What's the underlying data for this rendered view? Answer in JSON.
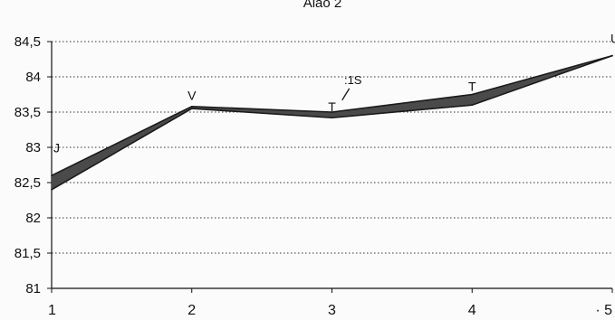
{
  "chart_data": {
    "type": "area",
    "title": "Alao 2",
    "xlabel": "",
    "ylabel": "",
    "x": [
      1,
      2,
      3,
      4,
      5
    ],
    "x_tick_labels": [
      "1",
      "2",
      "3",
      "4",
      "· 5"
    ],
    "y_ticks": [
      81,
      81.5,
      82,
      82.5,
      83,
      83.5,
      84,
      84.5
    ],
    "y_tick_labels": [
      "81",
      "81,5",
      "82",
      "82,5",
      "83",
      "83,5",
      "84",
      "84,5"
    ],
    "ylim": [
      81,
      84.5
    ],
    "xlim": [
      1,
      5
    ],
    "grid": "horizontal-dotted",
    "series": [
      {
        "values": [
          82.6,
          83.58,
          83.5,
          83.75,
          84.3
        ]
      },
      {
        "values": [
          82.4,
          83.55,
          83.42,
          83.6,
          84.3
        ]
      }
    ],
    "band_color": "#4a4a4a",
    "line_color": "#1a1a1a",
    "point_labels": [
      {
        "text": "J",
        "x": 1,
        "y": 82.93
      },
      {
        "text": "V",
        "x": 2,
        "y": 83.67
      },
      {
        "text": "T",
        "x": 3,
        "y": 83.51
      },
      {
        "text": "T",
        "x": 4,
        "y": 83.8
      },
      {
        "text": "U",
        "x": 5,
        "y": 84.48
      }
    ],
    "annotation": {
      "text": ":1S",
      "x": 3.15,
      "y": 83.9
    }
  }
}
